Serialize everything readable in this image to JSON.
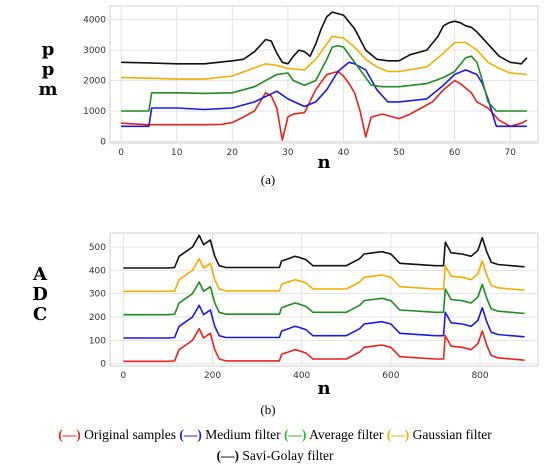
{
  "chart_data": [
    {
      "type": "line",
      "panel_label": "(a)",
      "xlabel": "n",
      "ylabel": "ppm",
      "xlim": [
        -2,
        75
      ],
      "ylim": [
        -50,
        4450
      ],
      "xticks": [
        0,
        10,
        20,
        30,
        40,
        50,
        60,
        70
      ],
      "yticks": [
        0,
        1000,
        2000,
        3000,
        4000
      ],
      "grid": true,
      "series": [
        {
          "name": "Original samples",
          "color": "#e8221b",
          "x": [
            0,
            5,
            10,
            15,
            18,
            20,
            22,
            24,
            26,
            27,
            28,
            29,
            30,
            31,
            33,
            35,
            37,
            39,
            40,
            41,
            42,
            43,
            44,
            45,
            47,
            50,
            52,
            54,
            56,
            58,
            60,
            61,
            63,
            64,
            65,
            66,
            67,
            68,
            70,
            72,
            73
          ],
          "y": [
            600,
            550,
            550,
            550,
            560,
            620,
            800,
            1000,
            1600,
            1500,
            1100,
            50,
            800,
            900,
            950,
            1700,
            2200,
            2300,
            2150,
            1900,
            1600,
            1000,
            150,
            800,
            900,
            750,
            900,
            1100,
            1300,
            1700,
            2000,
            1900,
            1600,
            1300,
            1200,
            1100,
            900,
            700,
            500,
            600,
            700
          ]
        },
        {
          "name": "Medium filter",
          "color": "#1a1ae6",
          "x": [
            0,
            5,
            5.5,
            10,
            15,
            20,
            24,
            28,
            30,
            33,
            35,
            37,
            39,
            41,
            42,
            44,
            46,
            48,
            50,
            55,
            58,
            60,
            62,
            64,
            65,
            66,
            67,
            67.5,
            70,
            73
          ],
          "y": [
            500,
            500,
            1100,
            1100,
            1050,
            1100,
            1300,
            1650,
            1400,
            1150,
            1300,
            1700,
            2300,
            2600,
            2550,
            2350,
            1700,
            1300,
            1300,
            1400,
            1850,
            2200,
            2350,
            2200,
            1900,
            1400,
            800,
            500,
            500,
            500
          ]
        },
        {
          "name": "Average filter",
          "color": "#1f8c1f",
          "x": [
            0,
            5,
            5.5,
            10,
            15,
            20,
            24,
            26,
            28,
            30,
            31,
            33,
            35,
            37,
            38,
            39,
            40,
            42,
            44,
            45,
            47,
            50,
            55,
            58,
            60,
            62,
            63,
            64,
            65,
            66,
            67,
            67.5,
            70,
            73
          ],
          "y": [
            1000,
            1000,
            1600,
            1600,
            1580,
            1600,
            1800,
            2000,
            2200,
            2250,
            2000,
            1850,
            2000,
            2700,
            3100,
            3150,
            3100,
            2600,
            2100,
            1850,
            1800,
            1800,
            1900,
            2100,
            2300,
            2750,
            2800,
            2600,
            2000,
            1300,
            1100,
            1000,
            1000,
            1000
          ]
        },
        {
          "name": "Gaussian filter",
          "color": "#f2ad00",
          "x": [
            0,
            5,
            10,
            15,
            20,
            23,
            26,
            28,
            30,
            33,
            35,
            37,
            38,
            40,
            42,
            44,
            46,
            48,
            50,
            55,
            58,
            60,
            62,
            64,
            66,
            68,
            70,
            73
          ],
          "y": [
            2100,
            2080,
            2050,
            2050,
            2150,
            2350,
            2550,
            2500,
            2400,
            2350,
            2700,
            3200,
            3450,
            3400,
            3100,
            2700,
            2450,
            2300,
            2300,
            2450,
            2900,
            3250,
            3250,
            3000,
            2600,
            2400,
            2250,
            2200
          ]
        },
        {
          "name": "Savi-Golay filter",
          "color": "#111111",
          "x": [
            0,
            5,
            10,
            15,
            20,
            22,
            24,
            25,
            26,
            27,
            28,
            29,
            30,
            31,
            32,
            33,
            34,
            35,
            36,
            37,
            38,
            39,
            40,
            42,
            44,
            46,
            48,
            50,
            52,
            55,
            57,
            58,
            59,
            60,
            61,
            62,
            63,
            64,
            66,
            68,
            70,
            72,
            73
          ],
          "y": [
            2600,
            2580,
            2550,
            2550,
            2650,
            2700,
            2950,
            3150,
            3350,
            3300,
            2900,
            2600,
            2550,
            2800,
            3000,
            2950,
            2800,
            3200,
            3700,
            4100,
            4250,
            4200,
            4150,
            3700,
            3000,
            2700,
            2650,
            2650,
            2850,
            3000,
            3450,
            3800,
            3900,
            3950,
            3900,
            3800,
            3750,
            3600,
            3200,
            2800,
            2600,
            2550,
            2750
          ]
        }
      ]
    },
    {
      "type": "line",
      "panel_label": "(b)",
      "xlabel": "n",
      "ylabel": "ADC",
      "xlim": [
        -30,
        930
      ],
      "ylim": [
        -10,
        560
      ],
      "xticks": [
        0,
        200,
        400,
        600,
        800
      ],
      "yticks": [
        0,
        100,
        200,
        300,
        400,
        500
      ],
      "grid": true,
      "series": [
        {
          "name": "Original samples",
          "color": "#e8221b",
          "offset": 0
        },
        {
          "name": "Medium filter",
          "color": "#1a1ae6",
          "offset": 100
        },
        {
          "name": "Average filter",
          "color": "#1f8c1f",
          "offset": 200
        },
        {
          "name": "Gaussian filter",
          "color": "#f2ad00",
          "offset": 300
        },
        {
          "name": "Savi-Golay filter",
          "color": "#111111",
          "offset": 400
        }
      ],
      "profile": {
        "x": [
          0,
          100,
          115,
          125,
          140,
          155,
          170,
          180,
          195,
          205,
          215,
          230,
          300,
          350,
          355,
          370,
          385,
          395,
          410,
          425,
          500,
          530,
          540,
          560,
          580,
          600,
          620,
          700,
          718,
          722,
          735,
          760,
          780,
          795,
          805,
          815,
          825,
          840,
          870,
          900
        ],
        "y": [
          10,
          10,
          12,
          60,
          80,
          100,
          150,
          110,
          130,
          60,
          20,
          12,
          12,
          12,
          40,
          50,
          60,
          55,
          45,
          20,
          20,
          50,
          70,
          75,
          80,
          70,
          30,
          20,
          20,
          120,
          75,
          70,
          60,
          85,
          140,
          80,
          35,
          25,
          20,
          15
        ]
      }
    }
  ],
  "legend": [
    {
      "mark": "(—)",
      "label": "Original samples",
      "color": "#e8221b"
    },
    {
      "mark": "(—)",
      "label": "Medium filter",
      "color": "#1a1ae6"
    },
    {
      "mark": "(—)",
      "label": "Average filter",
      "color": "#2db82d"
    },
    {
      "mark": "(—)",
      "label": "Gaussian filter",
      "color": "#f2ad00"
    },
    {
      "mark": "(—)",
      "label": "Savi-Golay filter",
      "color": "#111111"
    }
  ]
}
